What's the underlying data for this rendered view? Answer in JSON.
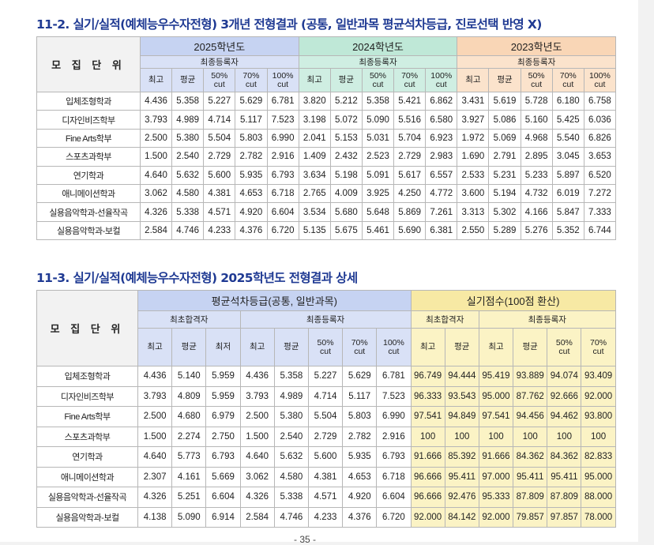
{
  "section1": {
    "title": "11-2. 실기/실적(예체능우수자전형) 3개년 전형결과 (공통, 일반과목 평균석차등급, 진로선택 반영 X)",
    "unit_header": "모 집 단 위",
    "years": [
      {
        "label": "2025학년도",
        "sub": "최종등록자"
      },
      {
        "label": "2024학년도",
        "sub": "최종등록자"
      },
      {
        "label": "2023학년도",
        "sub": "최종등록자"
      }
    ],
    "cols": [
      "최고",
      "평균",
      "50%\ncut",
      "70%\ncut",
      "100%\ncut"
    ],
    "rows": [
      {
        "name": "입체조형학과",
        "v": [
          "4.436",
          "5.358",
          "5.227",
          "5.629",
          "6.781",
          "3.820",
          "5.212",
          "5.358",
          "5.421",
          "6.862",
          "3.431",
          "5.619",
          "5.728",
          "6.180",
          "6.758"
        ]
      },
      {
        "name": "디자인비즈학부",
        "v": [
          "3.793",
          "4.989",
          "4.714",
          "5.117",
          "7.523",
          "3.198",
          "5.072",
          "5.090",
          "5.516",
          "6.580",
          "3.927",
          "5.086",
          "5.160",
          "5.425",
          "6.036"
        ]
      },
      {
        "name": "Fine Arts학부",
        "v": [
          "2.500",
          "5.380",
          "5.504",
          "5.803",
          "6.990",
          "2.041",
          "5.153",
          "5.031",
          "5.704",
          "6.923",
          "1.972",
          "5.069",
          "4.968",
          "5.540",
          "6.826"
        ]
      },
      {
        "name": "스포츠과학부",
        "v": [
          "1.500",
          "2.540",
          "2.729",
          "2.782",
          "2.916",
          "1.409",
          "2.432",
          "2.523",
          "2.729",
          "2.983",
          "1.690",
          "2.791",
          "2.895",
          "3.045",
          "3.653"
        ]
      },
      {
        "name": "연기학과",
        "v": [
          "4.640",
          "5.632",
          "5.600",
          "5.935",
          "6.793",
          "3.634",
          "5.198",
          "5.091",
          "5.617",
          "6.557",
          "2.533",
          "5.231",
          "5.233",
          "5.897",
          "6.520"
        ]
      },
      {
        "name": "애니메이션학과",
        "v": [
          "3.062",
          "4.580",
          "4.381",
          "4.653",
          "6.718",
          "2.765",
          "4.009",
          "3.925",
          "4.250",
          "4.772",
          "3.600",
          "5.194",
          "4.732",
          "6.019",
          "7.272"
        ]
      },
      {
        "name": "실용음악학과-선율작곡",
        "v": [
          "4.326",
          "5.338",
          "4.571",
          "4.920",
          "6.604",
          "3.534",
          "5.680",
          "5.648",
          "5.869",
          "7.261",
          "3.313",
          "5.302",
          "4.166",
          "5.847",
          "7.333"
        ]
      },
      {
        "name": "실용음악학과-보컬",
        "v": [
          "2.584",
          "4.746",
          "4.233",
          "4.376",
          "6.720",
          "5.135",
          "5.675",
          "5.461",
          "5.690",
          "6.381",
          "2.550",
          "5.289",
          "5.276",
          "5.352",
          "6.744"
        ]
      }
    ]
  },
  "section2": {
    "title": "11-3. 실기/실적(예체능우수자전형) 2025학년도 전형결과 상세",
    "unit_header": "모 집 단 위",
    "group_grade": "평균석차등급(공통, 일반과목)",
    "group_score": "실기점수(100점 환산)",
    "sub_pass": "최초합격자",
    "sub_final": "최종등록자",
    "grade_pass_cols": [
      "최고",
      "평균",
      "최저"
    ],
    "grade_final_cols": [
      "최고",
      "평균",
      "50%\ncut",
      "70%\ncut",
      "100%\ncut"
    ],
    "score_pass_cols": [
      "최고",
      "평균"
    ],
    "score_final_cols": [
      "최고",
      "평균",
      "50%\ncut",
      "70%\ncut"
    ],
    "rows": [
      {
        "name": "입체조형학과",
        "v": [
          "4.436",
          "5.140",
          "5.959",
          "4.436",
          "5.358",
          "5.227",
          "5.629",
          "6.781",
          "96.749",
          "94.444",
          "95.419",
          "93.889",
          "94.074",
          "93.409"
        ]
      },
      {
        "name": "디자인비즈학부",
        "v": [
          "3.793",
          "4.809",
          "5.959",
          "3.793",
          "4.989",
          "4.714",
          "5.117",
          "7.523",
          "96.333",
          "93.543",
          "95.000",
          "87.762",
          "92.666",
          "92.000"
        ]
      },
      {
        "name": "Fine Arts학부",
        "v": [
          "2.500",
          "4.680",
          "6.979",
          "2.500",
          "5.380",
          "5.504",
          "5.803",
          "6.990",
          "97.541",
          "94.849",
          "97.541",
          "94.456",
          "94.462",
          "93.800"
        ]
      },
      {
        "name": "스포츠과학부",
        "v": [
          "1.500",
          "2.274",
          "2.750",
          "1.500",
          "2.540",
          "2.729",
          "2.782",
          "2.916",
          "100",
          "100",
          "100",
          "100",
          "100",
          "100"
        ]
      },
      {
        "name": "연기학과",
        "v": [
          "4.640",
          "5.773",
          "6.793",
          "4.640",
          "5.632",
          "5.600",
          "5.935",
          "6.793",
          "91.666",
          "85.392",
          "91.666",
          "84.362",
          "84.362",
          "82.833"
        ]
      },
      {
        "name": "애니메이션학과",
        "v": [
          "2.307",
          "4.161",
          "5.669",
          "3.062",
          "4.580",
          "4.381",
          "4.653",
          "6.718",
          "96.666",
          "95.411",
          "97.000",
          "95.411",
          "95.411",
          "95.000"
        ]
      },
      {
        "name": "실용음악학과-선율작곡",
        "v": [
          "4.326",
          "5.251",
          "6.604",
          "4.326",
          "5.338",
          "4.571",
          "4.920",
          "6.604",
          "96.666",
          "92.476",
          "95.333",
          "87.809",
          "87.809",
          "88.000"
        ]
      },
      {
        "name": "실용음악학과-보컬",
        "v": [
          "4.138",
          "5.090",
          "6.914",
          "2.584",
          "4.746",
          "4.233",
          "4.376",
          "6.720",
          "92.000",
          "84.142",
          "92.000",
          "79.857",
          "97.857",
          "78.000"
        ]
      }
    ]
  },
  "page_number": "- 35 -",
  "colors": {
    "title": "#1f3a93",
    "y2025": "#d9e1f6",
    "y2024": "#cfeee2",
    "y2023": "#fbe3cc",
    "score": "#fbf3c5"
  }
}
